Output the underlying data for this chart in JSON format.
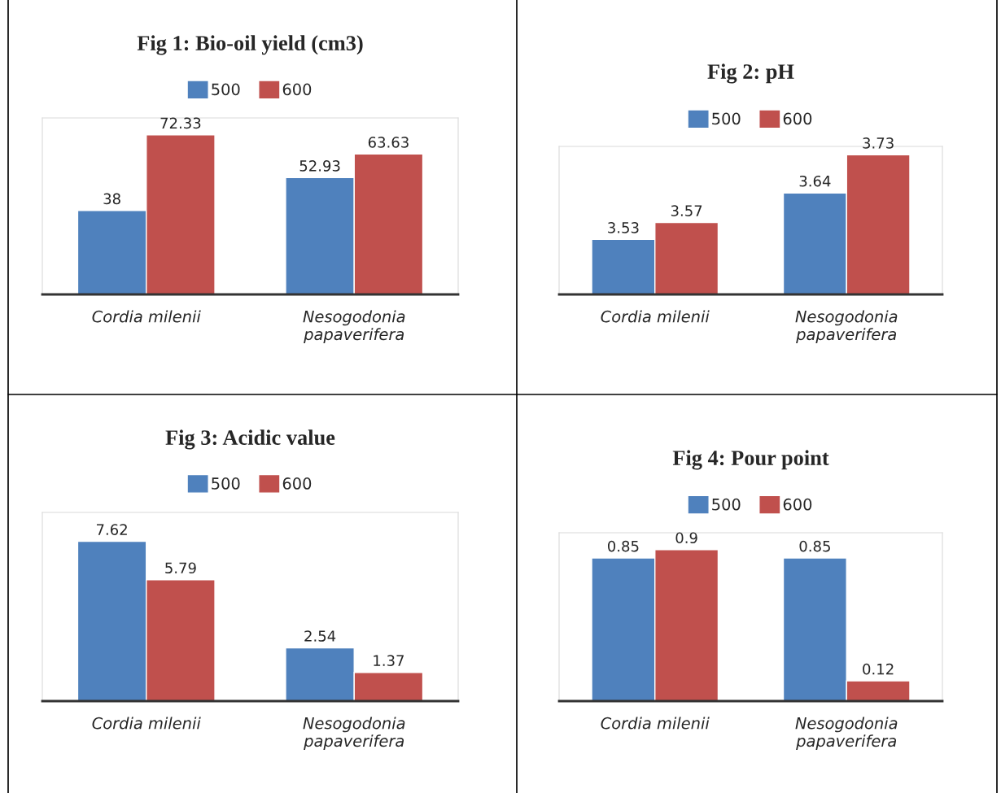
{
  "chart_data": [
    {
      "type": "bar",
      "title": "Fig 1: Bio-oil yield (cm3)",
      "categories": [
        "Cordia milenii",
        "Nesogodonia\npapaverifera"
      ],
      "series": [
        {
          "name": "500",
          "color": "#4f81bd",
          "values": [
            38,
            52.93
          ]
        },
        {
          "name": "600",
          "color": "#c0504d",
          "values": [
            72.33,
            63.63
          ]
        }
      ],
      "ylim": [
        0,
        80
      ],
      "data_labels": true,
      "legend": "top",
      "grid": false
    },
    {
      "type": "bar",
      "title": "Fig 2: pH",
      "categories": [
        "Cordia milenii",
        "Nesogodonia\npapaverifera"
      ],
      "series": [
        {
          "name": "500",
          "color": "#4f81bd",
          "values": [
            3.53,
            3.64
          ]
        },
        {
          "name": "600",
          "color": "#c0504d",
          "values": [
            3.57,
            3.73
          ]
        }
      ],
      "ylim": [
        3.4,
        3.75
      ],
      "data_labels": true,
      "legend": "top",
      "grid": false
    },
    {
      "type": "bar",
      "title": "Fig 3: Acidic value",
      "categories": [
        "Cordia milenii",
        "Nesogodonia\npapaverifera"
      ],
      "series": [
        {
          "name": "500",
          "color": "#4f81bd",
          "values": [
            7.62,
            2.54
          ]
        },
        {
          "name": "600",
          "color": "#c0504d",
          "values": [
            5.79,
            1.37
          ]
        }
      ],
      "ylim": [
        0,
        9
      ],
      "data_labels": true,
      "legend": "top",
      "grid": false
    },
    {
      "type": "bar",
      "title": "Fig 4: Pour point",
      "categories": [
        "Cordia milenii",
        "Nesogodonia\npapaverifera"
      ],
      "series": [
        {
          "name": "500",
          "color": "#4f81bd",
          "values": [
            0.85,
            0.85
          ]
        },
        {
          "name": "600",
          "color": "#c0504d",
          "values": [
            0.9,
            0.12
          ]
        }
      ],
      "ylim": [
        0,
        1
      ],
      "data_labels": true,
      "legend": "top",
      "grid": false
    }
  ]
}
